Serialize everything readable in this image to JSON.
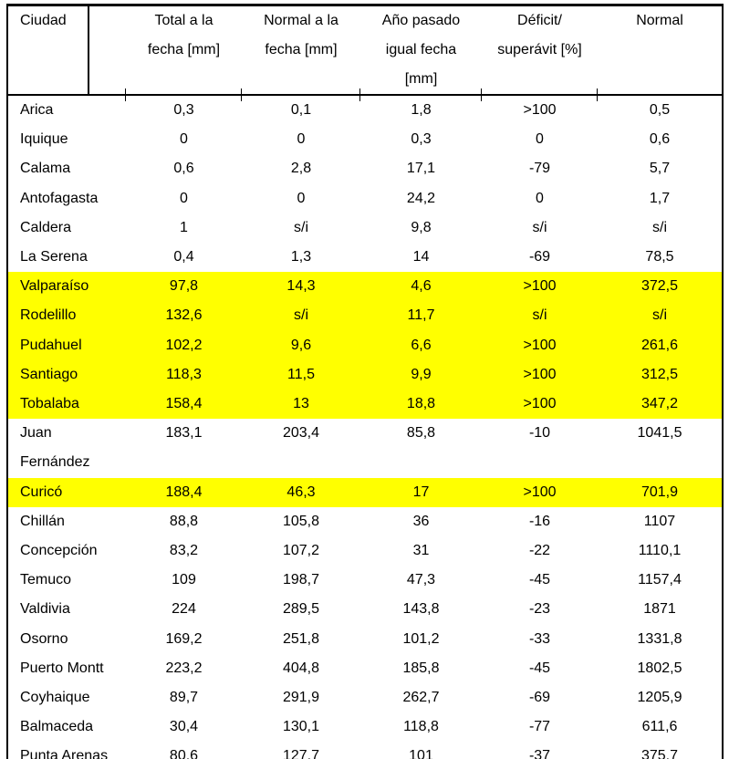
{
  "table": {
    "highlight_color": "#ffff00",
    "no_data_marker": "s/i",
    "columns": [
      {
        "label": "Ciudad"
      },
      {
        "label": "Total a la\nfecha [mm]"
      },
      {
        "label": "Normal a la\nfecha [mm]"
      },
      {
        "label": "Año pasado\nigual fecha\n[mm]"
      },
      {
        "label": "Déficit/\nsuperávit [%]"
      },
      {
        "label": "Normal"
      }
    ],
    "rows": [
      {
        "highlight": false,
        "cells": [
          "Arica",
          "0,3",
          "0,1",
          "1,8",
          ">100",
          "0,5"
        ]
      },
      {
        "highlight": false,
        "cells": [
          "Iquique",
          "0",
          "0",
          "0,3",
          "0",
          "0,6"
        ]
      },
      {
        "highlight": false,
        "cells": [
          "Calama",
          "0,6",
          "2,8",
          "17,1",
          "-79",
          "5,7"
        ]
      },
      {
        "highlight": false,
        "cells": [
          "Antofagasta",
          "0",
          "0",
          "24,2",
          "0",
          "1,7"
        ]
      },
      {
        "highlight": false,
        "cells": [
          "Caldera",
          "1",
          "s/i",
          "9,8",
          "s/i",
          "s/i"
        ]
      },
      {
        "highlight": false,
        "cells": [
          "La Serena",
          "0,4",
          "1,3",
          "14",
          "-69",
          "78,5"
        ]
      },
      {
        "highlight": true,
        "cells": [
          "Valparaíso",
          "97,8",
          "14,3",
          "4,6",
          ">100",
          "372,5"
        ]
      },
      {
        "highlight": true,
        "cells": [
          "Rodelillo",
          "132,6",
          "s/i",
          "11,7",
          "s/i",
          "s/i"
        ]
      },
      {
        "highlight": true,
        "cells": [
          "Pudahuel",
          "102,2",
          "9,6",
          "6,6",
          ">100",
          "261,6"
        ]
      },
      {
        "highlight": true,
        "cells": [
          "Santiago",
          "118,3",
          "11,5",
          "9,9",
          ">100",
          "312,5"
        ]
      },
      {
        "highlight": true,
        "cells": [
          "Tobalaba",
          "158,4",
          "13",
          "18,8",
          ">100",
          "347,2"
        ]
      },
      {
        "highlight": false,
        "cells": [
          "Juan\nFernández",
          "183,1",
          "203,4",
          "85,8",
          "-10",
          "1041,5"
        ]
      },
      {
        "highlight": true,
        "cells": [
          "Curicó",
          "188,4",
          "46,3",
          "17",
          ">100",
          "701,9"
        ]
      },
      {
        "highlight": false,
        "cells": [
          "Chillán",
          "88,8",
          "105,8",
          "36",
          "-16",
          "1107"
        ]
      },
      {
        "highlight": false,
        "cells": [
          "Concepción",
          "83,2",
          "107,2",
          "31",
          "-22",
          "1110,1"
        ]
      },
      {
        "highlight": false,
        "cells": [
          "Temuco",
          "109",
          "198,7",
          "47,3",
          "-45",
          "1157,4"
        ]
      },
      {
        "highlight": false,
        "cells": [
          "Valdivia",
          "224",
          "289,5",
          "143,8",
          "-23",
          "1871"
        ]
      },
      {
        "highlight": false,
        "cells": [
          "Osorno",
          "169,2",
          "251,8",
          "101,2",
          "-33",
          "1331,8"
        ]
      },
      {
        "highlight": false,
        "cells": [
          "Puerto Montt",
          "223,2",
          "404,8",
          "185,8",
          "-45",
          "1802,5"
        ]
      },
      {
        "highlight": false,
        "cells": [
          "Coyhaique",
          "89,7",
          "291,9",
          "262,7",
          "-69",
          "1205,9"
        ]
      },
      {
        "highlight": false,
        "cells": [
          "Balmaceda",
          "30,4",
          "130,1",
          "118,8",
          "-77",
          "611,6"
        ]
      },
      {
        "highlight": false,
        "cells": [
          "Punta Arenas",
          "80,6",
          "127,7",
          "101",
          "-37",
          "375,7"
        ]
      }
    ]
  }
}
